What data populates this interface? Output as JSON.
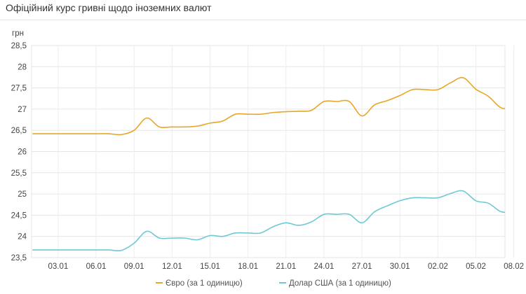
{
  "page": {
    "title": "Офіційний курс гривні щодо іноземних валют"
  },
  "chart_data": {
    "type": "line",
    "title": "Офіційний курс гривні щодо іноземних валют",
    "ylabel": "грн",
    "xlabel": "",
    "ylim": [
      23.5,
      28.5
    ],
    "yticks": [
      23.5,
      24,
      24.5,
      25,
      25.5,
      26,
      26.5,
      27,
      27.5,
      28,
      28.5
    ],
    "ytick_labels": [
      "23,5",
      "24",
      "24,5",
      "25",
      "25,5",
      "26",
      "26,5",
      "27",
      "27,5",
      "28",
      "28,5"
    ],
    "x_range": [
      0.9,
      38.3
    ],
    "xticks": [
      3,
      6,
      9,
      12,
      15,
      18,
      21,
      24,
      27,
      30,
      33,
      36,
      39
    ],
    "xtick_labels": [
      "03.01",
      "06.01",
      "09.01",
      "12.01",
      "15.01",
      "18.01",
      "21.01",
      "24.01",
      "27.01",
      "30.01",
      "02.02",
      "05.02",
      "08.02"
    ],
    "grid": true,
    "legend": "bottom",
    "series": [
      {
        "name": "Євро (за 1 одиницю)",
        "color": "#e8a629",
        "x": [
          1,
          2,
          3,
          4,
          5,
          6,
          7,
          8,
          9,
          10,
          11,
          12,
          13,
          14,
          15,
          16,
          17,
          18,
          19,
          20,
          21,
          22,
          23,
          24,
          25,
          26,
          27,
          28,
          29,
          30,
          31,
          32,
          33,
          34,
          35,
          36,
          37,
          38,
          39
        ],
        "values": [
          26.42,
          26.42,
          26.42,
          26.42,
          26.42,
          26.42,
          26.42,
          26.4,
          26.5,
          26.79,
          26.58,
          26.58,
          26.58,
          26.6,
          26.67,
          26.72,
          26.88,
          26.88,
          26.88,
          26.92,
          26.94,
          26.95,
          26.97,
          27.18,
          27.18,
          27.18,
          26.84,
          27.1,
          27.2,
          27.32,
          27.46,
          27.46,
          27.46,
          27.62,
          27.74,
          27.47,
          27.3,
          27.03,
          27.03
        ]
      },
      {
        "name": "Долар США (за 1 одиницю)",
        "color": "#6ec9d4",
        "x": [
          1,
          2,
          3,
          4,
          5,
          6,
          7,
          8,
          9,
          10,
          11,
          12,
          13,
          14,
          15,
          16,
          17,
          18,
          19,
          20,
          21,
          22,
          23,
          24,
          25,
          26,
          27,
          28,
          29,
          30,
          31,
          32,
          33,
          34,
          35,
          36,
          37,
          38,
          39
        ],
        "values": [
          23.68,
          23.68,
          23.68,
          23.68,
          23.68,
          23.68,
          23.68,
          23.67,
          23.84,
          24.12,
          23.96,
          23.96,
          23.96,
          23.92,
          24.02,
          24.0,
          24.08,
          24.08,
          24.08,
          24.23,
          24.32,
          24.26,
          24.34,
          24.52,
          24.52,
          24.52,
          24.32,
          24.58,
          24.72,
          24.84,
          24.91,
          24.91,
          24.91,
          25.01,
          25.07,
          24.84,
          24.78,
          24.58,
          24.58
        ]
      }
    ]
  }
}
